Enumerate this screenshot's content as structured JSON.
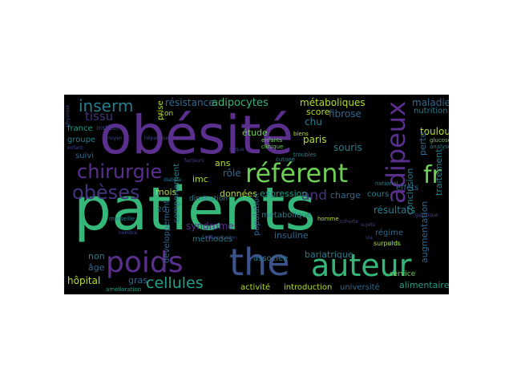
{
  "palette": {
    "background": "#000000",
    "purple": "#5b2f8e",
    "violet": "#46337e",
    "blue": "#3b528b",
    "steel": "#31688e",
    "teal": "#287d8e",
    "cyan": "#1f9e89",
    "green": "#35b779",
    "lime": "#6ece58",
    "yellowgreen": "#b5de2b",
    "yellow": "#fde725",
    "dim": "#414487"
  },
  "words": {
    "obesite": "obésité",
    "patients": "patients",
    "the": "the",
    "auteur": "auteur",
    "referent": "référent",
    "fr": "fr",
    "poids": "poids",
    "chirurgie": "chirurgie",
    "obeses": "obèses",
    "adipeux": "adipeux",
    "inserm": "inserm",
    "tissu": "tissu",
    "cellules": "cellules",
    "and": "and",
    "resistance": "résistance",
    "adipocytes": "adipocytes",
    "metaboliques": "métaboliques",
    "maladies": "maladies",
    "nutrition": "nutrition",
    "fibrose": "fibrose",
    "score": "score",
    "chu": "chu",
    "paris": "paris",
    "toulouse": "toulouse",
    "perte": "perte",
    "traitement": "traitement",
    "resultats": "résultats",
    "souris": "souris",
    "etude": "étude",
    "ans": "ans",
    "role": "rôle",
    "imc": "imc",
    "mois": "mois",
    "donnees": "données",
    "expression": "expression",
    "charge": "charge",
    "cours": "cours",
    "effets": "effets",
    "conclusion": "conclusion",
    "augmentation": "augmentation",
    "syndrome": "syndrome",
    "developpement": "développement",
    "comportement": "comportement",
    "population": "population",
    "metabolique": "métabolique",
    "insuline": "insuline",
    "regime": "régime",
    "bariatrique": "bariatrique",
    "associee": "associée",
    "methodes": "méthodes",
    "non": "non",
    "age": "âge",
    "hopital": "hôpital",
    "gras": "gras",
    "activite": "activité",
    "introduction": "introduction",
    "universite": "université",
    "alimentaire": "alimentaire",
    "service": "service",
    "france": "france",
    "groupe": "groupe",
    "suivi": "suivi",
    "prise": "prise",
    "institut": "institut",
    "diminution": "diminution",
    "surpoids": "surpoids",
    "enfants": "enfants",
    "clinique": "clinique",
    "troubles": "troubles",
    "glucose": "glucose",
    "analyse": "analyse",
    "national": "national",
    "homme": "homme",
    "vivo": "vivo",
    "amelioration": "amélioration",
    "marseille": "marseille",
    "cutane": "cutané",
    "diabete": "diabète",
    "inflammation": "inflammation",
    "twenty": "20",
    "con": "con",
    "facteurs": "facteurs",
    "hepatique": "hépatique",
    "moyen": "moyen",
    "enfant": "enfant",
    "physique": "physique",
    "biens": "biens",
    "cohorte": "cohorte",
    "sujets": "sujets",
    "gastrique": "gastrique",
    "via": "via",
    "nombre": "nombre",
    "risque": "risque"
  }
}
